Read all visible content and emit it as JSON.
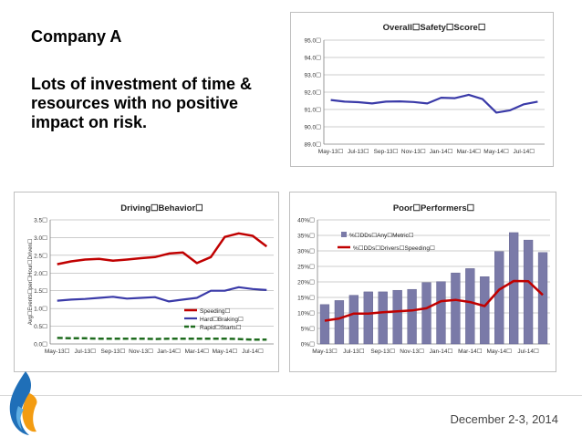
{
  "slide": {
    "heading": "Company A",
    "subtext": "Lots of investment of time & resources with no positive impact on risk.",
    "date": "December 2-3, 2014"
  },
  "colors": {
    "red": "#c00000",
    "blue": "#3a3aa8",
    "green": "#1e6b1e",
    "bar": "#7a7aa8",
    "grid": "#999999"
  },
  "chart_data": [
    {
      "type": "line",
      "title": "Overall☐Safety☐Score☐",
      "categories": [
        "May-13",
        "Jun-13",
        "Jul-13",
        "Aug-13",
        "Sep-13",
        "Oct-13",
        "Nov-13",
        "Dec-13",
        "Jan-14",
        "Feb-14",
        "Mar-14",
        "Apr-14",
        "May-14",
        "Jun-14",
        "Jul-14",
        "Aug-14"
      ],
      "tick_labels": [
        "May-13☐",
        "Jul-13☐",
        "Sep-13☐",
        "Nov-13☐",
        "Jan-14☐",
        "Mar-14☐",
        "May-14☐",
        "Jul-14☐"
      ],
      "y_tick_labels": [
        "89.0☐",
        "90.0☐",
        "91.0☐",
        "92.0☐",
        "93.0☐",
        "94.0☐",
        "95.0☐"
      ],
      "ylim": [
        89,
        95
      ],
      "grid": true,
      "series": [
        {
          "values": [
            91.55,
            91.45,
            91.42,
            91.35,
            91.45,
            91.47,
            91.43,
            91.35,
            91.68,
            91.65,
            91.85,
            91.6,
            90.82,
            90.95,
            91.3,
            91.45
          ]
        }
      ]
    },
    {
      "type": "line",
      "title": "Driving☐Behavior☐",
      "ylabel": "Avg☐Events☐per☐Hour☐Driven☐",
      "categories": [
        "May-13",
        "Jun-13",
        "Jul-13",
        "Aug-13",
        "Sep-13",
        "Oct-13",
        "Nov-13",
        "Dec-13",
        "Jan-14",
        "Feb-14",
        "Mar-14",
        "Apr-14",
        "May-14",
        "Jun-14",
        "Jul-14",
        "Aug-14"
      ],
      "tick_labels": [
        "May-13☐",
        "Jul-13☐",
        "Sep-13☐",
        "Nov-13☐",
        "Jan-14☐",
        "Mar-14☐",
        "May-14☐",
        "Jul-14☐"
      ],
      "y_tick_labels": [
        "0.0☐",
        "0.5☐",
        "1.0☐",
        "1.5☐",
        "2.0☐",
        "2.5☐",
        "3.0☐",
        "3.5☐"
      ],
      "ylim": [
        0,
        3.5
      ],
      "grid": true,
      "legend": "bottom-right",
      "series": [
        {
          "name": "Speeding☐",
          "values": [
            2.25,
            2.33,
            2.38,
            2.4,
            2.35,
            2.38,
            2.42,
            2.45,
            2.55,
            2.58,
            2.28,
            2.45,
            3.02,
            3.12,
            3.05,
            2.75
          ]
        },
        {
          "name": "Hard☐Braking☐",
          "values": [
            1.22,
            1.25,
            1.27,
            1.3,
            1.33,
            1.28,
            1.3,
            1.32,
            1.2,
            1.25,
            1.3,
            1.5,
            1.5,
            1.6,
            1.55,
            1.52
          ]
        },
        {
          "name": "Rapid☐Starts☐",
          "values": [
            0.17,
            0.16,
            0.16,
            0.15,
            0.15,
            0.15,
            0.15,
            0.14,
            0.15,
            0.15,
            0.15,
            0.15,
            0.15,
            0.14,
            0.12,
            0.12
          ]
        }
      ]
    },
    {
      "type": "bar",
      "title": "Poor☐Performers☐",
      "categories": [
        "May-13",
        "Jun-13",
        "Jul-13",
        "Aug-13",
        "Sep-13",
        "Oct-13",
        "Nov-13",
        "Dec-13",
        "Jan-14",
        "Feb-14",
        "Mar-14",
        "Apr-14",
        "May-14",
        "Jun-14",
        "Jul-14",
        "Aug-14"
      ],
      "tick_labels": [
        "May-13☐",
        "Jul-13☐",
        "Sep-13☐",
        "Nov-13☐",
        "Jan-14☐",
        "Mar-14☐",
        "May-14☐",
        "Jul-14☐"
      ],
      "y_tick_labels": [
        "0%☐",
        "5%☐",
        "10%☐",
        "15%☐",
        "20%☐",
        "25%☐",
        "30%☐",
        "35%☐",
        "40%☐"
      ],
      "ylim": [
        0,
        40
      ],
      "grid": true,
      "legend": "top-left",
      "series": [
        {
          "name": "%☐DDs☐Any☐Metric☐",
          "kind": "bar",
          "values": [
            12.7,
            14,
            15.7,
            16.8,
            16.8,
            17.3,
            17.6,
            19.8,
            20.1,
            22.9,
            24.3,
            21.7,
            29.8,
            35.9,
            33.5,
            29.5
          ]
        },
        {
          "name": "%☐DDs☐Drivers☐Speeding☐",
          "kind": "line",
          "values": [
            7.5,
            8.2,
            9.8,
            9.8,
            10.2,
            10.5,
            10.8,
            11.5,
            13.8,
            14.2,
            13.5,
            12.2,
            17.5,
            20.3,
            20.2,
            15.8
          ]
        }
      ]
    }
  ]
}
